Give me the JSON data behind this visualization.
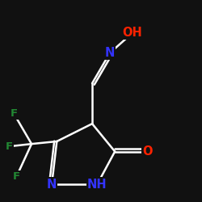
{
  "background_color": "#111111",
  "bond_color": "#ffffff",
  "atom_colors": {
    "N": "#3333ff",
    "O": "#ff2200",
    "F": "#228833"
  },
  "font_size": 10.5,
  "line_width": 1.8,
  "fig_size": [
    2.5,
    2.5
  ],
  "dpi": 100,
  "xlim": [
    0.5,
    8.0
  ],
  "ylim": [
    0.5,
    8.5
  ]
}
